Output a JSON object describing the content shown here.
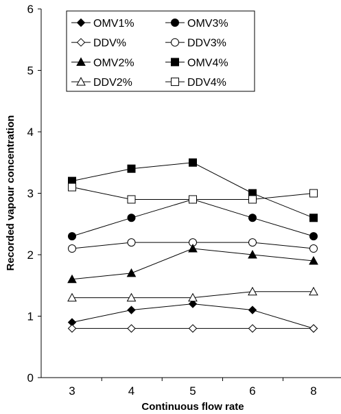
{
  "chart_data": {
    "type": "line",
    "categories": [
      "3",
      "4",
      "5",
      "6",
      "8"
    ],
    "xlabel": "Continuous flow rate",
    "ylabel": "Recorded vapour concentration",
    "ylim": [
      0,
      6
    ],
    "yticks": [
      0,
      1,
      2,
      3,
      4,
      5,
      6
    ],
    "grid": false,
    "legend_position": "top-left",
    "series": [
      {
        "name": "OMV1%",
        "marker": "diamond",
        "filled": true,
        "values": [
          0.9,
          1.1,
          1.2,
          1.1,
          0.8
        ]
      },
      {
        "name": "OMV3%",
        "marker": "circle",
        "filled": true,
        "values": [
          2.3,
          2.6,
          2.9,
          2.6,
          2.3
        ]
      },
      {
        "name": "DDV%",
        "marker": "diamond",
        "filled": false,
        "values": [
          0.8,
          0.8,
          0.8,
          0.8,
          0.8
        ]
      },
      {
        "name": "DDV3%",
        "marker": "circle",
        "filled": false,
        "values": [
          2.1,
          2.2,
          2.2,
          2.2,
          2.1
        ]
      },
      {
        "name": "OMV2%",
        "marker": "triangle",
        "filled": true,
        "values": [
          1.6,
          1.7,
          2.1,
          2.0,
          1.9
        ]
      },
      {
        "name": "OMV4%",
        "marker": "square",
        "filled": true,
        "values": [
          3.2,
          3.4,
          3.5,
          3.0,
          2.6
        ]
      },
      {
        "name": "DDV2%",
        "marker": "triangle",
        "filled": false,
        "values": [
          1.3,
          1.3,
          1.3,
          1.4,
          1.4
        ]
      },
      {
        "name": "DDV4%",
        "marker": "square",
        "filled": false,
        "values": [
          3.1,
          2.9,
          2.9,
          2.9,
          3.0
        ]
      }
    ]
  }
}
